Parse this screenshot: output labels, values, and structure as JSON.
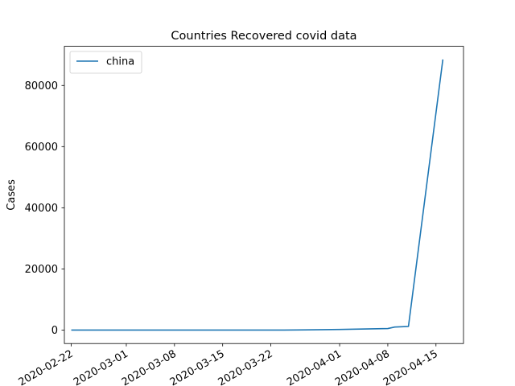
{
  "chart_data": {
    "type": "line",
    "title": "Countries Recovered covid data",
    "xlabel": "",
    "ylabel": "Cases",
    "x_tick_labels": [
      "2020-02-22",
      "2020-03-01",
      "2020-03-08",
      "2020-03-15",
      "2020-03-22",
      "2020-04-01",
      "2020-04-08",
      "2020-04-15"
    ],
    "y_tick_labels": [
      "0",
      "20000",
      "40000",
      "60000",
      "80000"
    ],
    "xlim": [
      "2020-02-21",
      "2020-04-19"
    ],
    "ylim": [
      -4400,
      92800
    ],
    "legend": {
      "position": "upper-left"
    },
    "grid": false,
    "series": [
      {
        "name": "china",
        "color": "#1f77b4",
        "points": [
          {
            "x": "2020-02-22",
            "y": 0
          },
          {
            "x": "2020-03-24",
            "y": 0
          },
          {
            "x": "2020-04-01",
            "y": 200
          },
          {
            "x": "2020-04-08",
            "y": 500
          },
          {
            "x": "2020-04-09",
            "y": 1000
          },
          {
            "x": "2020-04-11",
            "y": 1200
          },
          {
            "x": "2020-04-16",
            "y": 88500
          }
        ]
      }
    ]
  }
}
